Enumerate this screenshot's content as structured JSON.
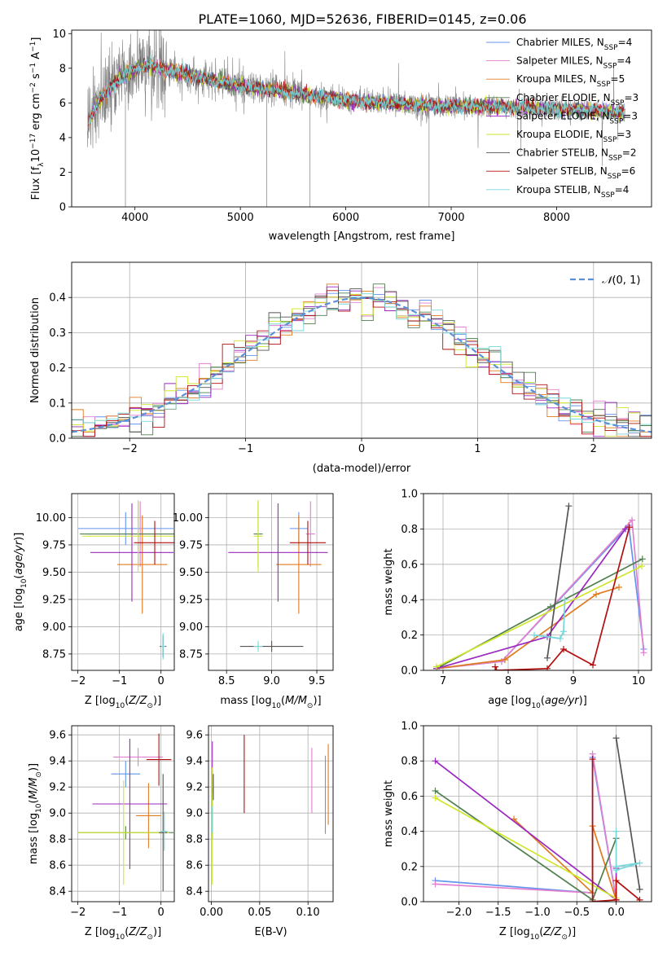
{
  "figure_title": "PLATE=1060, MJD=52636, FIBERID=0145, z=0.06",
  "colors": {
    "c0": "#6495ed",
    "c1": "#e37fd1",
    "c2": "#e07a1f",
    "c3": "#4f7f4f",
    "c4": "#9b28c0",
    "c5": "#cfe62a",
    "c6": "#555555",
    "c7": "#b30f0f",
    "c8": "#76d6d9",
    "data": "#808080",
    "grid": "#b0b0b0",
    "normal_curve": "#5b8fd6"
  },
  "models": [
    {
      "label": "Chabrier MILES, N",
      "sub": "SSP",
      "suffix": "=4",
      "color": "#6495ed"
    },
    {
      "label": "Salpeter MILES, N",
      "sub": "SSP",
      "suffix": "=4",
      "color": "#e37fd1"
    },
    {
      "label": "Kroupa MILES, N",
      "sub": "SSP",
      "suffix": "=5",
      "color": "#e07a1f"
    },
    {
      "label": "Chabrier ELODIE, N",
      "sub": "SSP",
      "suffix": "=3",
      "color": "#4f7f4f"
    },
    {
      "label": "Salpeter ELODIE, N",
      "sub": "SSP",
      "suffix": "=3",
      "color": "#9b28c0"
    },
    {
      "label": "Kroupa ELODIE, N",
      "sub": "SSP",
      "suffix": "=3",
      "color": "#cfe62a"
    },
    {
      "label": "Chabrier STELIB, N",
      "sub": "SSP",
      "suffix": "=2",
      "color": "#555555"
    },
    {
      "label": "Salpeter STELIB, N",
      "sub": "SSP",
      "suffix": "=6",
      "color": "#b30f0f"
    },
    {
      "label": "Kroupa STELIB, N",
      "sub": "SSP",
      "suffix": "=4",
      "color": "#76d6d9"
    }
  ],
  "chart_data": [
    {
      "type": "line",
      "name": "spectrum",
      "xlabel": "wavelength [Angstrom, rest frame]",
      "ylabel": "Flux [f",
      "xlim": [
        3400,
        8900
      ],
      "ylim": [
        0,
        10.2
      ],
      "xticks": [
        4000,
        5000,
        6000,
        7000,
        8000
      ],
      "yticks": [
        0,
        2,
        4,
        6,
        8,
        10
      ],
      "legend": "upper-right",
      "continuum": {
        "x": [
          3550,
          3650,
          3800,
          3950,
          4100,
          4300,
          4600,
          4900,
          5200,
          5500,
          5800,
          6100,
          6400,
          6700,
          7000,
          7400,
          7800,
          8200,
          8700
        ],
        "y": [
          4.8,
          6.1,
          7.1,
          7.8,
          8.2,
          7.9,
          7.5,
          7.1,
          6.8,
          6.6,
          6.3,
          6.1,
          6.0,
          5.9,
          5.8,
          5.8,
          5.7,
          5.6,
          5.4
        ]
      },
      "data_range": [
        3550,
        8650
      ],
      "model_range": [
        3560,
        8640
      ]
    },
    {
      "type": "line",
      "name": "residual-histogram",
      "xlabel": "(data-model)/error",
      "ylabel": "Normed distribution",
      "xlim": [
        -2.5,
        2.5
      ],
      "ylim": [
        0,
        0.5
      ],
      "xticks": [
        -2,
        -1,
        0,
        1,
        2
      ],
      "yticks": [
        0.0,
        0.1,
        0.2,
        0.3,
        0.4
      ],
      "bins": [
        -2.5,
        2.5,
        50
      ],
      "legend_label": "(0, 1)",
      "legend_symbol": "𝒩",
      "legend": "upper-right"
    },
    {
      "type": "scatter",
      "name": "age-vs-Z",
      "xlabel": "Z [log",
      "ylabel": "age  [log",
      "xlim": [
        -2.15,
        0.32
      ],
      "ylim": [
        8.6,
        10.22
      ],
      "xticks": [
        -2,
        -1,
        0
      ],
      "yticks": [
        8.75,
        9.0,
        9.25,
        9.5,
        9.75,
        10.0
      ],
      "points": [
        {
          "x": -0.85,
          "y": 9.9,
          "xerr": 1.15,
          "yerr": 0.15
        },
        {
          "x": -0.5,
          "y": 9.85,
          "xerr": 1.3,
          "yerr": 0.3
        },
        {
          "x": -0.45,
          "y": 9.57,
          "xerr": 0.6,
          "yerr": 0.45
        },
        {
          "x": -0.55,
          "y": 9.85,
          "xerr": 1.4,
          "yerr": 0.3
        },
        {
          "x": -0.7,
          "y": 9.68,
          "xerr": 1.0,
          "yerr": 0.45
        },
        {
          "x": -0.55,
          "y": 9.83,
          "xerr": 1.35,
          "yerr": 0.33
        },
        {
          "x": 0.05,
          "y": 8.82,
          "xerr": 0.08,
          "yerr": 0.1
        },
        {
          "x": -0.15,
          "y": 9.77,
          "xerr": 0.5,
          "yerr": 0.2
        },
        {
          "x": 0.05,
          "y": 8.82,
          "xerr": 0.05,
          "yerr": 0.12
        }
      ]
    },
    {
      "type": "scatter",
      "name": "age-vs-mass",
      "xlabel": "mass [log",
      "ylabel": "",
      "xlim": [
        8.3,
        9.68
      ],
      "ylim": [
        8.6,
        10.22
      ],
      "xticks": [
        8.5,
        9.0,
        9.5
      ],
      "yticks": [
        8.75,
        9.0,
        9.25,
        9.5,
        9.75,
        10.0
      ],
      "points": [
        {
          "x": 9.3,
          "y": 9.9,
          "xerr": 0.1,
          "yerr": 0.15
        },
        {
          "x": 9.43,
          "y": 9.85,
          "xerr": 0.05,
          "yerr": 0.3
        },
        {
          "x": 9.3,
          "y": 9.57,
          "xerr": 0.25,
          "yerr": 0.45
        },
        {
          "x": 8.85,
          "y": 9.85,
          "xerr": 0.05,
          "yerr": 0.3
        },
        {
          "x": 9.07,
          "y": 9.68,
          "xerr": 0.55,
          "yerr": 0.45
        },
        {
          "x": 8.85,
          "y": 9.83,
          "xerr": 0.05,
          "yerr": 0.33
        },
        {
          "x": 9.0,
          "y": 8.82,
          "xerr": 0.35,
          "yerr": 0.05
        },
        {
          "x": 9.4,
          "y": 9.77,
          "xerr": 0.2,
          "yerr": 0.2
        },
        {
          "x": 8.85,
          "y": 8.82,
          "xerr": 0.05,
          "yerr": 0.05
        }
      ]
    },
    {
      "type": "line",
      "name": "mass-weight-vs-age",
      "xlabel": "age  [log",
      "ylabel": "mass weight",
      "xlim": [
        6.7,
        10.2
      ],
      "ylim": [
        0,
        1.0
      ],
      "xticks": [
        7,
        8,
        9,
        10
      ],
      "yticks": [
        0.0,
        0.2,
        0.4,
        0.6,
        0.8,
        1.0
      ],
      "series": [
        {
          "x": [
            6.9,
            7.9,
            9.85,
            10.08
          ],
          "y": [
            0.01,
            0.05,
            0.82,
            0.12
          ]
        },
        {
          "x": [
            6.9,
            7.9,
            9.9,
            10.08
          ],
          "y": [
            0.01,
            0.05,
            0.85,
            0.1
          ]
        },
        {
          "x": [
            6.9,
            7.95,
            9.35,
            9.7
          ],
          "y": [
            0.01,
            0.06,
            0.43,
            0.47
          ]
        },
        {
          "x": [
            6.9,
            8.65,
            10.06
          ],
          "y": [
            0.01,
            0.36,
            0.63
          ]
        },
        {
          "x": [
            6.9,
            8.6,
            9.8
          ],
          "y": [
            0.01,
            0.19,
            0.8
          ]
        },
        {
          "x": [
            6.9,
            10.05
          ],
          "y": [
            0.02,
            0.59
          ]
        },
        {
          "x": [
            8.6,
            8.93
          ],
          "y": [
            0.07,
            0.93
          ]
        },
        {
          "x": [
            7.8,
            7.82,
            8.6,
            8.85,
            9.3,
            9.86
          ],
          "y": [
            0.02,
            0.0,
            0.01,
            0.12,
            0.03,
            0.81
          ]
        },
        {
          "x": [
            8.4,
            8.8,
            8.85,
            8.87
          ],
          "y": [
            0.2,
            0.18,
            0.22,
            0.4
          ]
        }
      ]
    },
    {
      "type": "scatter",
      "name": "mass-vs-Z",
      "xlabel": "Z [log",
      "ylabel": "mass [log",
      "xlim": [
        -2.15,
        0.32
      ],
      "ylim": [
        8.32,
        9.67
      ],
      "xticks": [
        -2,
        -1,
        0
      ],
      "yticks": [
        8.4,
        8.6,
        8.8,
        9.0,
        9.2,
        9.4,
        9.6
      ],
      "points": [
        {
          "x": -0.85,
          "y": 9.3,
          "xerr": 0.35,
          "yerr": 0.1
        },
        {
          "x": -0.55,
          "y": 9.43,
          "xerr": 0.6,
          "yerr": 0.07
        },
        {
          "x": -0.3,
          "y": 8.98,
          "xerr": 0.3,
          "yerr": 0.25
        },
        {
          "x": -0.85,
          "y": 8.85,
          "xerr": 1.15,
          "yerr": 0.05
        },
        {
          "x": -0.75,
          "y": 9.07,
          "xerr": 0.9,
          "yerr": 0.5
        },
        {
          "x": -0.9,
          "y": 8.85,
          "xerr": 1.1,
          "yerr": 0.4
        },
        {
          "x": 0.05,
          "y": 8.85,
          "xerr": 0.1,
          "yerr": 0.45
        },
        {
          "x": -0.05,
          "y": 9.41,
          "xerr": 0.3,
          "yerr": 0.2
        },
        {
          "x": 0.08,
          "y": 8.86,
          "xerr": 0.08,
          "yerr": 0.15
        }
      ]
    },
    {
      "type": "scatter",
      "name": "mass-vs-EBV",
      "xlabel": "E(B-V)",
      "ylabel": "",
      "xlim": [
        -0.003,
        0.126
      ],
      "ylim": [
        8.32,
        9.67
      ],
      "xticks": [
        0.0,
        0.05,
        0.1
      ],
      "yticks": [
        8.4,
        8.6,
        8.8,
        9.0,
        9.2,
        9.4,
        9.6
      ],
      "points": [
        {
          "x": 0.118,
          "y": 9.14,
          "yerr": 0.3
        },
        {
          "x": 0.104,
          "y": 9.25,
          "yerr": 0.25
        },
        {
          "x": 0.121,
          "y": 9.22,
          "yerr": 0.31
        },
        {
          "x": 0.001,
          "y": 9.0,
          "yerr": 0.2
        },
        {
          "x": 0.001,
          "y": 9.35,
          "yerr": 0.2
        },
        {
          "x": 0.001,
          "y": 8.9,
          "yerr": 0.45
        },
        {
          "x": 0.002,
          "y": 9.2,
          "yerr": 0.1
        },
        {
          "x": 0.034,
          "y": 9.3,
          "yerr": 0.3
        },
        {
          "x": 0.001,
          "y": 8.95,
          "yerr": 0.1
        }
      ]
    },
    {
      "type": "line",
      "name": "mass-weight-vs-Z",
      "xlabel": "Z [log",
      "ylabel": "mass weight",
      "xlim": [
        -2.45,
        0.45
      ],
      "ylim": [
        0,
        1.0
      ],
      "xticks": [
        -2.0,
        -1.5,
        -1.0,
        -0.5,
        0.0
      ],
      "yticks": [
        0.0,
        0.2,
        0.4,
        0.6,
        0.8,
        1.0
      ],
      "series": [
        {
          "x": [
            -2.3,
            -0.3,
            -0.3,
            0.0
          ],
          "y": [
            0.12,
            0.05,
            0.82,
            0.01
          ]
        },
        {
          "x": [
            -2.3,
            -0.3,
            -0.3,
            0.0
          ],
          "y": [
            0.1,
            0.05,
            0.84,
            0.01
          ]
        },
        {
          "x": [
            -1.3,
            -0.3,
            -0.3,
            0.0
          ],
          "y": [
            0.47,
            0.05,
            0.43,
            0.01
          ]
        },
        {
          "x": [
            -2.3,
            -0.3,
            0.0
          ],
          "y": [
            0.63,
            0.01,
            0.36
          ]
        },
        {
          "x": [
            -2.3,
            0.0,
            0.0
          ],
          "y": [
            0.8,
            0.01,
            0.19
          ]
        },
        {
          "x": [
            -2.3,
            0.0
          ],
          "y": [
            0.59,
            0.02
          ]
        },
        {
          "x": [
            0.0,
            0.3
          ],
          "y": [
            0.93,
            0.07
          ]
        },
        {
          "x": [
            -0.3,
            -0.3,
            0.0,
            0.0,
            0.3
          ],
          "y": [
            0.81,
            0.0,
            0.01,
            0.12,
            0.01
          ]
        },
        {
          "x": [
            0.0,
            0.0,
            0.3,
            0.0
          ],
          "y": [
            0.4,
            0.18,
            0.22,
            0.2
          ]
        }
      ]
    }
  ]
}
